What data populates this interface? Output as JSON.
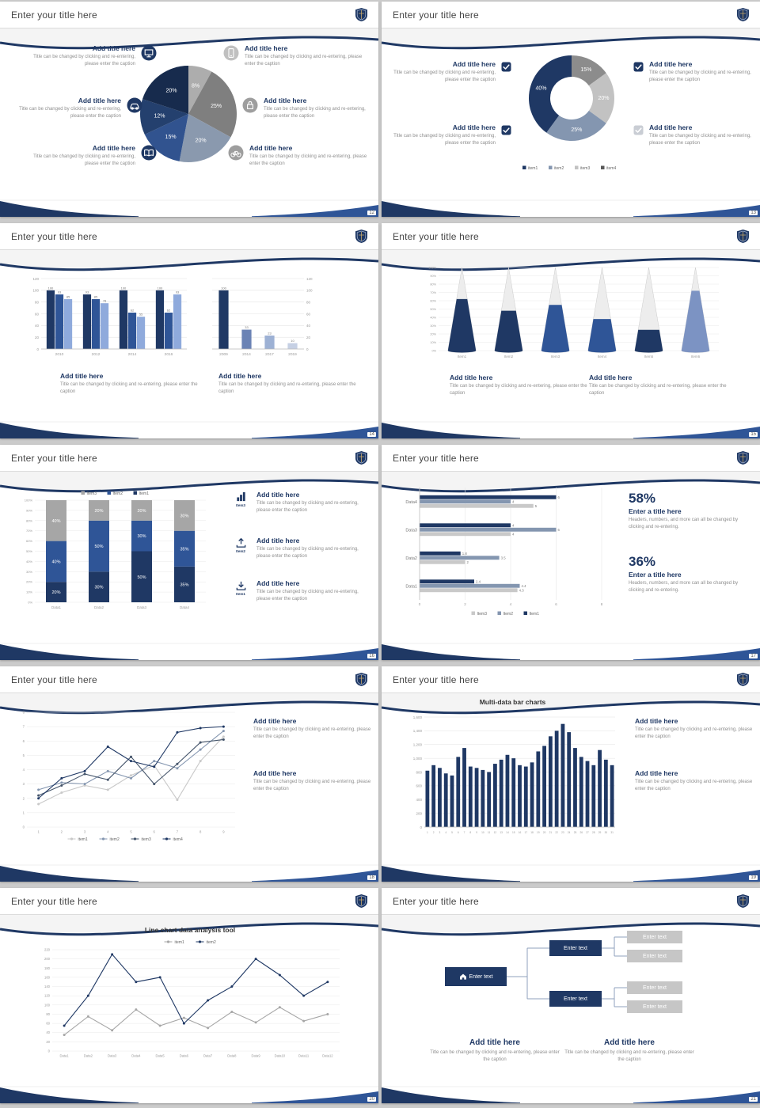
{
  "common": {
    "slide_title": "Enter your title here",
    "add_title": "Add title here",
    "caption": "Title can be changed by clicking and re-entering, please enter the caption",
    "stat_caption": "Headers, numbers, and more can all be changed by clicking and re-entering."
  },
  "palette": {
    "navy": "#1F3864",
    "blue": "#2F5597",
    "steel": "#8496B0",
    "gray": "#A6A6A6",
    "light_gray": "#BFBFBF"
  },
  "slides": {
    "s1": {
      "page": "12",
      "blocks": [
        {
          "icon": "monitor-icon",
          "icon_color": "#1F3864"
        },
        {
          "icon": "smartphone-icon",
          "icon_color": "#C0C0C0"
        },
        {
          "icon": "car-icon",
          "icon_color": "#1F3864"
        },
        {
          "icon": "lock-icon",
          "icon_color": "#9E9E9E"
        },
        {
          "icon": "book-icon",
          "icon_color": "#1F3864"
        },
        {
          "icon": "bicycle-icon",
          "icon_color": "#9E9E9E"
        }
      ]
    },
    "s2": {
      "page": "13",
      "checkbox_colors": [
        "#1F3864",
        "#1F3864",
        "#1F3864",
        "#C9CDD4"
      ]
    },
    "s3": {
      "page": "14"
    },
    "s4": {
      "page": "15"
    },
    "s5": {
      "page": "16",
      "items": [
        {
          "label": "Item3",
          "icon": "bar-chart-icon"
        },
        {
          "label": "Item2",
          "icon": "upload-icon"
        },
        {
          "label": "Item1",
          "icon": "download-icon"
        }
      ]
    },
    "s6": {
      "page": "17",
      "stats": [
        {
          "value": "58%",
          "title": "Enter a title here"
        },
        {
          "value": "36%",
          "title": "Enter a title here"
        }
      ]
    },
    "s7": {
      "page": "18"
    },
    "s8": {
      "page": "19"
    },
    "s9": {
      "page": "20"
    },
    "s10": {
      "page": "21",
      "node_label": "Enter text"
    }
  },
  "chart_data": [
    {
      "id": "s1_pie",
      "type": "pie",
      "labels": [
        "8%",
        "25%",
        "20%",
        "15%",
        "12%",
        "20%"
      ],
      "values": [
        8,
        25,
        20,
        15,
        12,
        20
      ],
      "colors": [
        "#ADADAD",
        "#7F7F7F",
        "#8A99AE",
        "#31538F",
        "#24406E",
        "#172B4D"
      ]
    },
    {
      "id": "s2_donut",
      "type": "donut",
      "labels": [
        "15%",
        "20%",
        "25%",
        "40%"
      ],
      "values": [
        15,
        20,
        25,
        40
      ],
      "colors": [
        "#8C8C8C",
        "#C2C2C2",
        "#8496B0",
        "#1F3864"
      ],
      "legend": [
        {
          "label": "item1",
          "color": "#1F3864"
        },
        {
          "label": "item2",
          "color": "#8496B0"
        },
        {
          "label": "item3",
          "color": "#C2C2C2"
        },
        {
          "label": "item4",
          "color": "#595959"
        }
      ]
    },
    {
      "id": "s3_group",
      "type": "bar",
      "axis_side": "left",
      "value_labels": true,
      "categories": [
        "2010",
        "2012",
        "2014",
        "2016"
      ],
      "ylim": [
        0,
        120
      ],
      "yticks": [
        0,
        20,
        40,
        60,
        80,
        100,
        120
      ],
      "series": [
        {
          "name": "Series1",
          "color": "#1F3864",
          "values": [
            100,
            93,
            100,
            100
          ]
        },
        {
          "name": "Series2",
          "color": "#2F5597",
          "values": [
            93,
            85,
            62,
            62
          ]
        },
        {
          "name": "Series3",
          "color": "#8FAADC",
          "values": [
            85,
            78,
            55,
            93
          ]
        }
      ]
    },
    {
      "id": "s3_single",
      "type": "bar",
      "axis_side": "right",
      "value_labels": true,
      "categories": [
        "2009",
        "2014",
        "2017",
        "2019"
      ],
      "ylim": [
        0,
        120
      ],
      "yticks": [
        0,
        20,
        40,
        60,
        80,
        100,
        120
      ],
      "series": [
        {
          "name": "Series1",
          "colors": [
            "#1F3864",
            "#6B83B5",
            "#9DB1D4",
            "#C6D0E4"
          ],
          "values": [
            100,
            33,
            23,
            10
          ]
        }
      ]
    },
    {
      "id": "s4_cone",
      "type": "cone",
      "categories": [
        "Item1",
        "Item2",
        "Item3",
        "Item4",
        "Item5",
        "Item6"
      ],
      "values": [
        62,
        48,
        55,
        38,
        25,
        72
      ],
      "fill_colors": [
        "#1F3864",
        "#1F3864",
        "#2F5597",
        "#2F5597",
        "#1F3864",
        "#7C93C3"
      ],
      "ylim": [
        0,
        100
      ],
      "ytick_step": 10
    },
    {
      "id": "s5_stack",
      "type": "stacked",
      "categories": [
        "Data1",
        "Data2",
        "Data3",
        "Data4"
      ],
      "series": [
        {
          "name": "Item1",
          "color": "#1F3864",
          "values": [
            20,
            30,
            50,
            35
          ]
        },
        {
          "name": "Item2",
          "color": "#2F5597",
          "values": [
            40,
            50,
            30,
            35
          ]
        },
        {
          "name": "Item3",
          "color": "#A6A6A6",
          "values": [
            40,
            20,
            20,
            30
          ]
        }
      ],
      "legend": [
        {
          "label": "Item3",
          "color": "#A6A6A6"
        },
        {
          "label": "Item2",
          "color": "#2F5597"
        },
        {
          "label": "Item1",
          "color": "#1F3864"
        }
      ]
    },
    {
      "id": "s6_hbar",
      "type": "hbar",
      "categories": [
        "Data4",
        "Data3",
        "Data2",
        "Data1"
      ],
      "series": [
        {
          "name": "Item1",
          "color": "#1F3864",
          "values": [
            6,
            4,
            1.8,
            2.4
          ]
        },
        {
          "name": "Item2",
          "color": "#8496B0",
          "values": [
            4,
            6,
            3.5,
            4.4
          ]
        },
        {
          "name": "Item3",
          "color": "#C9C9C9",
          "values": [
            5,
            4,
            2,
            4.3
          ]
        }
      ],
      "xlim": [
        0,
        8
      ],
      "xticks": [
        0,
        2,
        4,
        6,
        8
      ],
      "legend": [
        {
          "label": "Item3",
          "color": "#C9C9C9"
        },
        {
          "label": "Item2",
          "color": "#8496B0"
        },
        {
          "label": "Item1",
          "color": "#1F3864"
        }
      ]
    },
    {
      "id": "s7_line",
      "type": "line",
      "x": [
        "1",
        "2",
        "3",
        "4",
        "5",
        "6",
        "7",
        "8",
        "9"
      ],
      "ylim": [
        0,
        8
      ],
      "ytick_step": 1,
      "legend_pos": "bottom",
      "series": [
        {
          "name": "item1",
          "color": "#C9C9C9",
          "values": [
            1.6,
            2.4,
            2.9,
            2.6,
            3.6,
            4.3,
            1.9,
            4.6,
            6.3
          ]
        },
        {
          "name": "item2",
          "color": "#8496B0",
          "values": [
            2.6,
            3.1,
            3.0,
            3.9,
            3.4,
            4.6,
            4.1,
            5.4,
            6.7
          ]
        },
        {
          "name": "item3",
          "color": "#44546A",
          "values": [
            2.2,
            2.9,
            3.7,
            3.3,
            4.9,
            3.0,
            4.4,
            5.9,
            6.1
          ]
        },
        {
          "name": "item4",
          "color": "#1F3864",
          "values": [
            2.0,
            3.4,
            3.9,
            5.6,
            4.6,
            4.2,
            6.6,
            6.9,
            7.0
          ]
        }
      ]
    },
    {
      "id": "s8_bar",
      "type": "bar",
      "axis_side": "left",
      "value_labels": false,
      "cat_font": 3.2,
      "title": "Multi-data bar charts",
      "categories": [
        "1",
        "2",
        "3",
        "4",
        "5",
        "6",
        "7",
        "8",
        "9",
        "10",
        "11",
        "12",
        "13",
        "14",
        "15",
        "16",
        "17",
        "18",
        "19",
        "20",
        "21",
        "22",
        "23",
        "24",
        "25",
        "26",
        "27",
        "28",
        "29",
        "30",
        "31"
      ],
      "ylim": [
        0,
        1600
      ],
      "yticks": [
        0,
        200,
        400,
        600,
        800,
        1000,
        1200,
        1400,
        1600
      ],
      "series": [
        {
          "name": "data",
          "color": "#1F3864",
          "values": [
            820,
            900,
            860,
            780,
            750,
            1020,
            1150,
            880,
            860,
            830,
            800,
            920,
            980,
            1050,
            1000,
            900,
            880,
            940,
            1100,
            1180,
            1320,
            1400,
            1500,
            1380,
            1150,
            1020,
            960,
            900,
            1120,
            980,
            900
          ]
        }
      ]
    },
    {
      "id": "s9_line",
      "type": "line",
      "title": "Line chart data analysis tool",
      "x": [
        "Data1",
        "Data2",
        "Data3",
        "Data4",
        "Data5",
        "Data6",
        "Data7",
        "Data8",
        "Data9",
        "Data10",
        "Data11",
        "Data12"
      ],
      "ylim": [
        0,
        220
      ],
      "ytick_step": 20,
      "legend_pos": "top",
      "series": [
        {
          "name": "item1",
          "color": "#A6A6A6",
          "values": [
            35,
            75,
            45,
            90,
            55,
            72,
            50,
            85,
            62,
            95,
            65,
            80
          ]
        },
        {
          "name": "item2",
          "color": "#1F3864",
          "values": [
            55,
            120,
            210,
            150,
            160,
            60,
            110,
            140,
            200,
            165,
            120,
            150
          ]
        }
      ]
    }
  ]
}
